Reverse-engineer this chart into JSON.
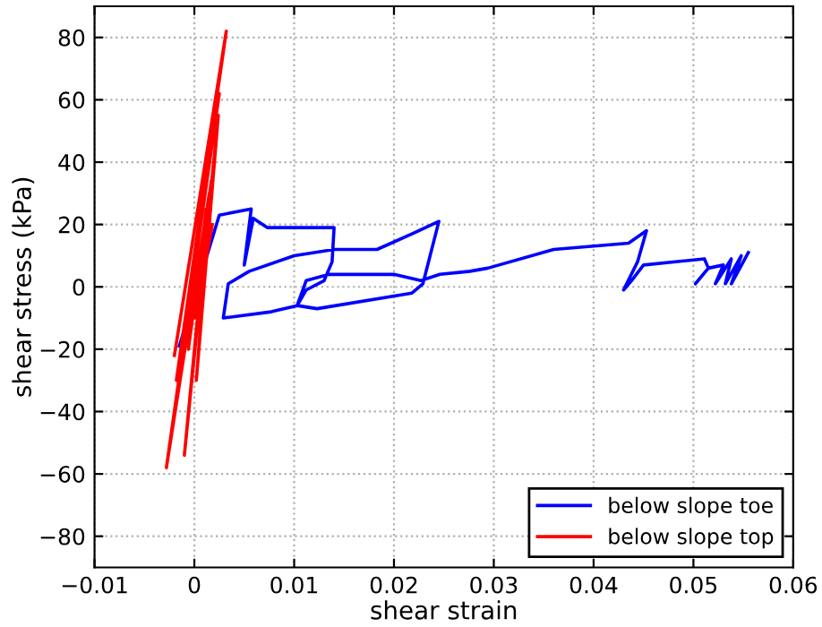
{
  "chart_data": {
    "type": "line",
    "xlabel": "shear strain",
    "ylabel": "shear stress (kPa)",
    "xlim": [
      -0.01,
      0.06
    ],
    "ylim": [
      -90,
      90
    ],
    "xticks": [
      {
        "value": -0.01,
        "label": "−0.01"
      },
      0,
      0.01,
      0.02,
      0.03,
      0.04,
      0.05,
      0.06
    ],
    "yticks": [
      {
        "value": -80,
        "label": "−80"
      },
      {
        "value": -60,
        "label": "−60"
      },
      {
        "value": -40,
        "label": "−40"
      },
      {
        "value": -20,
        "label": "−20"
      },
      0,
      20,
      40,
      60,
      80
    ],
    "grid": true,
    "legend": "bottom right",
    "line_style": "solid",
    "series": [
      {
        "name": "below slope toe",
        "color": "#0000ff",
        "x": [
          -0.0015,
          0.0025,
          0.0057,
          0.005,
          0.0059,
          0.0073,
          0.014,
          0.0138,
          0.013,
          0.0112,
          0.0103,
          0.0123,
          0.0218,
          0.0229,
          0.0245,
          0.0218,
          0.0183,
          0.014,
          0.01,
          0.0055,
          0.0034,
          0.0029,
          0.0077,
          0.0103,
          0.0112,
          0.0135,
          0.02,
          0.0227,
          0.0246,
          0.0276,
          0.0294,
          0.036,
          0.0435,
          0.0453,
          0.0444,
          0.043,
          0.0438,
          0.045,
          0.0511,
          0.0515,
          0.0502,
          0.0515,
          0.053,
          0.0522,
          0.0538,
          0.0532,
          0.0548,
          0.0538,
          0.0555
        ],
        "values": [
          -19,
          23,
          25,
          7,
          22,
          19,
          19,
          8,
          2,
          -1,
          -6,
          -7,
          -2,
          1,
          21,
          17,
          12,
          12,
          10,
          5,
          1,
          -10,
          -8,
          -6,
          2,
          4,
          4,
          2,
          4,
          5,
          6,
          12,
          14,
          18,
          8,
          -1,
          2,
          7,
          9,
          6,
          1,
          6,
          7,
          1,
          9,
          1,
          10,
          1,
          11
        ]
      },
      {
        "name": "below slope top",
        "color": "#ff0000",
        "x": [
          -0.002,
          0.0032,
          -0.0018,
          0.0025,
          -0.0028,
          0.0015,
          -0.001,
          0.0024,
          0.0002,
          0.0017,
          -0.0006,
          0.0012,
          0.0001,
          0.0018
        ],
        "values": [
          -22,
          82,
          -30,
          62,
          -58,
          30,
          -54,
          55,
          -30,
          34,
          -20,
          25,
          -10,
          20
        ]
      }
    ]
  }
}
